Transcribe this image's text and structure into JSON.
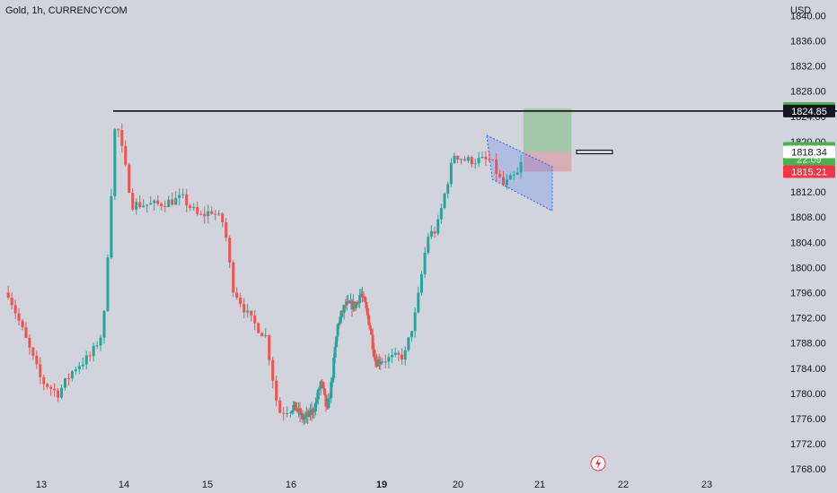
{
  "chart_data": {
    "type": "candlestick",
    "title": "Gold, 1h, CURRENCYCOM",
    "y_axis_unit": "USD",
    "ylim": [
      1768,
      1840
    ],
    "y_ticks": [
      "1840.00",
      "1836.00",
      "1832.00",
      "1828.00",
      "1824.00",
      "1820.00",
      "1816.00",
      "1812.00",
      "1808.00",
      "1804.00",
      "1800.00",
      "1796.00",
      "1792.00",
      "1788.00",
      "1784.00",
      "1780.00",
      "1776.00",
      "1772.00",
      "1768.00"
    ],
    "x_ticks": [
      {
        "label": "13",
        "bold": false,
        "day": 13
      },
      {
        "label": "14",
        "bold": false,
        "day": 14
      },
      {
        "label": "15",
        "bold": false,
        "day": 15
      },
      {
        "label": "16",
        "bold": false,
        "day": 16
      },
      {
        "label": "19",
        "bold": true,
        "day": 19
      },
      {
        "label": "20",
        "bold": false,
        "day": 20
      },
      {
        "label": "21",
        "bold": false,
        "day": 21
      },
      {
        "label": "22",
        "bold": false,
        "day": 22
      },
      {
        "label": "23",
        "bold": false,
        "day": 23
      }
    ],
    "candle_anchors": [
      [
        12.6,
        1796.0
      ],
      [
        12.8,
        1789.0
      ],
      [
        13.0,
        1782.0
      ],
      [
        13.2,
        1780.0
      ],
      [
        13.4,
        1784.0
      ],
      [
        13.6,
        1786.0
      ],
      [
        13.75,
        1790.0
      ],
      [
        13.9,
        1824.0
      ],
      [
        14.1,
        1810.0
      ],
      [
        14.4,
        1810.0
      ],
      [
        14.7,
        1811.0
      ],
      [
        14.9,
        1808.0
      ],
      [
        15.05,
        1809.0
      ],
      [
        15.2,
        1807.0
      ],
      [
        15.3,
        1797.0
      ],
      [
        15.5,
        1792.0
      ],
      [
        15.7,
        1789.0
      ],
      [
        15.85,
        1777.0
      ],
      [
        16.1,
        1778.0
      ],
      [
        16.4,
        1776.0
      ],
      [
        16.6,
        1776.5
      ],
      [
        16.8,
        1778.0
      ],
      [
        17.0,
        1782.0
      ],
      [
        17.2,
        1777.0
      ],
      [
        17.35,
        1782.0
      ],
      [
        17.55,
        1791.0
      ],
      [
        17.8,
        1794.0
      ],
      [
        17.95,
        1794.0
      ],
      [
        18.15,
        1794.0
      ],
      [
        18.3,
        1796.0
      ],
      [
        18.45,
        1794.0
      ],
      [
        18.6,
        1791.0
      ],
      [
        18.8,
        1785.0
      ],
      [
        19.1,
        1785.5
      ],
      [
        19.3,
        1786.0
      ],
      [
        19.45,
        1793.0
      ],
      [
        19.6,
        1805.0
      ],
      [
        19.72,
        1806.0
      ],
      [
        19.85,
        1813.0
      ],
      [
        19.95,
        1818.0
      ],
      [
        20.1,
        1817.0
      ],
      [
        20.25,
        1817.0
      ],
      [
        20.4,
        1817.0
      ],
      [
        20.55,
        1813.0
      ],
      [
        20.65,
        1814.0
      ],
      [
        20.75,
        1815.0
      ],
      [
        20.8,
        1818.5
      ]
    ],
    "horizontal_line": {
      "price": 1824.85,
      "from_day": 13.87
    },
    "position": {
      "entry": 1818.34,
      "target": 1825.26,
      "stop": 1815.21,
      "from_day": 20.8,
      "to_day": 21.38
    },
    "channel": {
      "upper": [
        [
          20.35,
          1821.0
        ],
        [
          21.15,
          1816.0
        ]
      ],
      "lower": [
        [
          20.42,
          1814.0
        ],
        [
          21.15,
          1809.0
        ]
      ]
    },
    "price_labels": [
      {
        "price": 1825.26,
        "text": "1825.26",
        "bg": "#4caf50",
        "fg": "#ffffff"
      },
      {
        "price": 1824.85,
        "text": "1824.85",
        "bg": "#131722",
        "fg": "#ffffff"
      },
      {
        "price": 1818.91,
        "text": "1818.91",
        "bg": "#4caf50",
        "fg": "#ffffff",
        "sub": "22:09"
      },
      {
        "price": 1818.34,
        "text": "1818.34",
        "bg": "#ffffff",
        "fg": "#131722"
      },
      {
        "price": 1815.21,
        "text": "1815.21",
        "bg": "#f23645",
        "fg": "#ffffff"
      }
    ],
    "colors": {
      "background": "#d1d4dc",
      "up": "#26a69a",
      "down": "#ef5350",
      "up_pos": "#4caf50",
      "down_pos": "#f23645",
      "channel": "#2962ff",
      "line": "#000000",
      "text": "#131722"
    },
    "grid": false
  }
}
